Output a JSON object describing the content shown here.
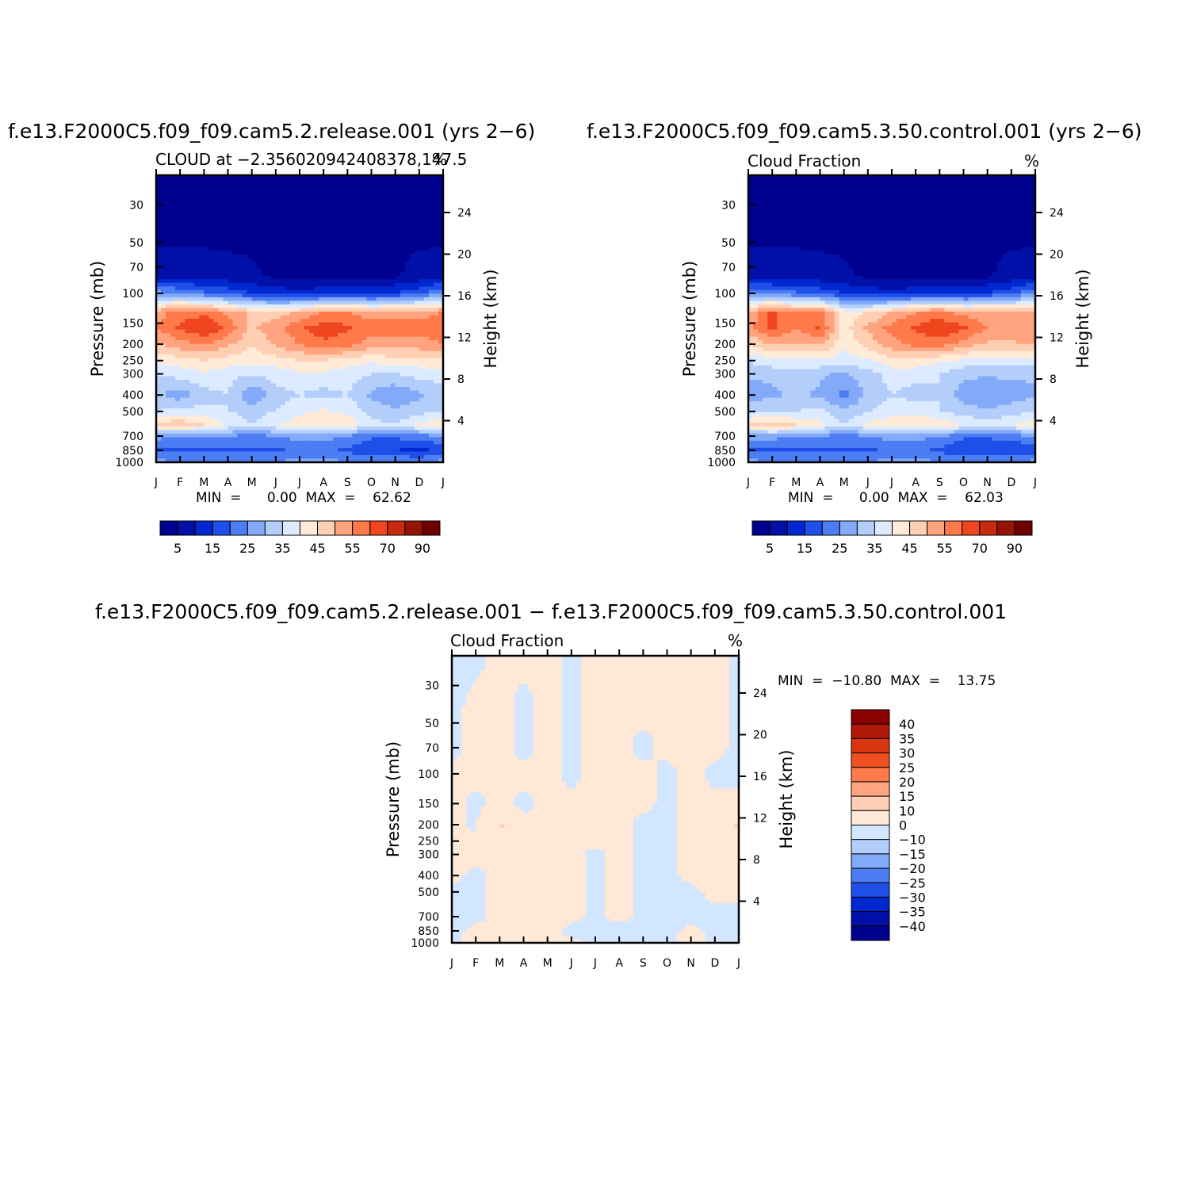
{
  "panels": [
    {
      "title": "f.e13.F2000C5.f09_f09.cam5.2.release.001  (yrs  2−6)",
      "left_label": "CLOUD  at  −2.356020942408378,147.5",
      "units": "%",
      "ylabel_left": "Pressure  (mb)",
      "ylabel_right": "Height  (km)",
      "minmax": "MIN  =      0.00  MAX  =    62.62"
    },
    {
      "title": "f.e13.F2000C5.f09_f09.cam5.3.50.control.001  (yrs  2−6)",
      "left_label": "Cloud  Fraction",
      "units": "%",
      "ylabel_left": "Pressure  (mb)",
      "ylabel_right": "Height  (km)",
      "minmax": "MIN  =      0.00  MAX  =    62.03"
    },
    {
      "title": "f.e13.F2000C5.f09_f09.cam5.2.release.001  −  f.e13.F2000C5.f09_f09.cam5.3.50.control.001",
      "left_label": "Cloud  Fraction",
      "units": "%",
      "ylabel_left": "Pressure  (mb)",
      "ylabel_right": "Height  (km)",
      "minmax": "MIN  =  −10.80  MAX  =    13.75"
    }
  ],
  "chart_data": [
    {
      "type": "heatmap",
      "title": "f.e13.F2000C5.f09_f09.cam5.2.release.001  (yrs  2−6)",
      "x_ticks": [
        "J",
        "F",
        "M",
        "A",
        "M",
        "J",
        "J",
        "A",
        "S",
        "O",
        "N",
        "D",
        "J"
      ],
      "y_ticks_pressure": [
        "30",
        "50",
        "70",
        "100",
        "150",
        "200",
        "250",
        "300",
        "400",
        "500",
        "700",
        "850",
        "1000"
      ],
      "y_ticks_height": [
        "24",
        "20",
        "16",
        "12",
        "8",
        "4"
      ],
      "ylim_mb": [
        20,
        1000
      ],
      "levels": [
        "5",
        "15",
        "25",
        "35",
        "45",
        "55",
        "70",
        "90"
      ],
      "min": 0.0,
      "max": 62.62,
      "x": [
        "J",
        "F",
        "M",
        "A",
        "M",
        "J",
        "J",
        "A",
        "S",
        "O",
        "N",
        "D",
        "J"
      ],
      "y_mb": [
        20,
        50,
        80,
        100,
        130,
        160,
        200,
        250,
        300,
        400,
        500,
        600,
        700,
        850,
        1000
      ],
      "z": [
        [
          0,
          0,
          0,
          0,
          0,
          0,
          0,
          0,
          0,
          0,
          0,
          0,
          0
        ],
        [
          0,
          0,
          0,
          0,
          0,
          0,
          0,
          0,
          0,
          0,
          0,
          0,
          0
        ],
        [
          4,
          3,
          3,
          2,
          1,
          0,
          0,
          0,
          0,
          0,
          0,
          2,
          4
        ],
        [
          22,
          20,
          16,
          14,
          10,
          8,
          6,
          8,
          9,
          8,
          10,
          14,
          20
        ],
        [
          48,
          52,
          54,
          48,
          44,
          42,
          46,
          50,
          50,
          48,
          48,
          48,
          50
        ],
        [
          50,
          56,
          60,
          54,
          44,
          48,
          54,
          58,
          56,
          52,
          52,
          52,
          54
        ],
        [
          44,
          48,
          50,
          46,
          40,
          46,
          50,
          54,
          52,
          48,
          48,
          48,
          50
        ],
        [
          36,
          38,
          40,
          38,
          38,
          38,
          40,
          40,
          38,
          36,
          38,
          38,
          38
        ],
        [
          30,
          32,
          34,
          32,
          30,
          32,
          34,
          34,
          32,
          30,
          30,
          32,
          32
        ],
        [
          26,
          22,
          28,
          30,
          20,
          28,
          30,
          28,
          30,
          24,
          20,
          24,
          28
        ],
        [
          30,
          32,
          32,
          30,
          28,
          30,
          34,
          36,
          34,
          28,
          26,
          28,
          30
        ],
        [
          42,
          44,
          40,
          34,
          30,
          34,
          38,
          40,
          38,
          32,
          30,
          36,
          40
        ],
        [
          22,
          20,
          20,
          20,
          18,
          20,
          22,
          22,
          20,
          16,
          16,
          18,
          20
        ],
        [
          14,
          14,
          14,
          14,
          14,
          14,
          16,
          16,
          14,
          10,
          10,
          8,
          12
        ],
        [
          22,
          20,
          20,
          20,
          20,
          20,
          22,
          22,
          20,
          20,
          20,
          20,
          22
        ]
      ]
    },
    {
      "type": "heatmap",
      "title": "f.e13.F2000C5.f09_f09.cam5.3.50.control.001  (yrs  2−6)",
      "x_ticks": [
        "J",
        "F",
        "M",
        "A",
        "M",
        "J",
        "J",
        "A",
        "S",
        "O",
        "N",
        "D",
        "J"
      ],
      "y_ticks_pressure": [
        "30",
        "50",
        "70",
        "100",
        "150",
        "200",
        "250",
        "300",
        "400",
        "500",
        "700",
        "850",
        "1000"
      ],
      "y_ticks_height": [
        "24",
        "20",
        "16",
        "12",
        "8",
        "4"
      ],
      "ylim_mb": [
        20,
        1000
      ],
      "levels": [
        "5",
        "15",
        "25",
        "35",
        "45",
        "55",
        "70",
        "90"
      ],
      "min": 0.0,
      "max": 62.03,
      "x": [
        "J",
        "F",
        "M",
        "A",
        "M",
        "J",
        "J",
        "A",
        "S",
        "O",
        "N",
        "D",
        "J"
      ],
      "y_mb": [
        20,
        50,
        80,
        100,
        130,
        160,
        200,
        250,
        300,
        400,
        500,
        600,
        700,
        850,
        1000
      ],
      "z": [
        [
          0,
          0,
          0,
          0,
          0,
          0,
          0,
          0,
          0,
          0,
          0,
          0,
          0
        ],
        [
          0,
          0,
          0,
          0,
          0,
          0,
          0,
          0,
          0,
          0,
          0,
          0,
          0
        ],
        [
          4,
          3,
          3,
          2,
          1,
          0,
          0,
          0,
          0,
          0,
          0,
          2,
          4
        ],
        [
          20,
          18,
          16,
          14,
          10,
          8,
          6,
          8,
          9,
          8,
          10,
          14,
          20
        ],
        [
          46,
          56,
          50,
          52,
          38,
          40,
          46,
          50,
          52,
          48,
          48,
          46,
          48
        ],
        [
          48,
          56,
          50,
          56,
          38,
          46,
          52,
          56,
          60,
          56,
          50,
          48,
          50
        ],
        [
          40,
          46,
          44,
          46,
          36,
          42,
          48,
          52,
          52,
          48,
          44,
          44,
          46
        ],
        [
          30,
          34,
          32,
          34,
          32,
          34,
          38,
          38,
          36,
          34,
          32,
          32,
          32
        ],
        [
          26,
          26,
          28,
          26,
          24,
          28,
          32,
          32,
          30,
          26,
          26,
          26,
          26
        ],
        [
          22,
          24,
          26,
          24,
          18,
          26,
          30,
          28,
          30,
          22,
          20,
          22,
          24
        ],
        [
          30,
          30,
          30,
          32,
          26,
          30,
          32,
          34,
          30,
          28,
          26,
          28,
          30
        ],
        [
          40,
          44,
          40,
          36,
          30,
          36,
          40,
          38,
          40,
          34,
          32,
          34,
          38
        ],
        [
          22,
          22,
          20,
          20,
          18,
          20,
          22,
          22,
          20,
          16,
          16,
          18,
          20
        ],
        [
          14,
          14,
          14,
          14,
          14,
          14,
          16,
          16,
          14,
          10,
          10,
          10,
          12
        ],
        [
          22,
          20,
          20,
          20,
          20,
          20,
          22,
          22,
          20,
          20,
          20,
          20,
          22
        ]
      ]
    },
    {
      "type": "heatmap",
      "title": "f.e13.F2000C5.f09_f09.cam5.2.release.001  −  f.e13.F2000C5.f09_f09.cam5.3.50.control.001",
      "x_ticks": [
        "J",
        "F",
        "M",
        "A",
        "M",
        "J",
        "J",
        "A",
        "S",
        "O",
        "N",
        "D",
        "J"
      ],
      "y_ticks_pressure": [
        "30",
        "50",
        "70",
        "100",
        "150",
        "200",
        "250",
        "300",
        "400",
        "500",
        "700",
        "850",
        "1000"
      ],
      "y_ticks_height": [
        "24",
        "20",
        "16",
        "12",
        "8",
        "4"
      ],
      "ylim_mb": [
        20,
        1000
      ],
      "levels": [
        "40",
        "35",
        "30",
        "25",
        "20",
        "15",
        "10",
        "0",
        "−10",
        "−15",
        "−20",
        "−25",
        "−30",
        "−35",
        "−40"
      ],
      "min": -10.8,
      "max": 13.75,
      "x": [
        "J",
        "F",
        "M",
        "A",
        "M",
        "J",
        "J",
        "A",
        "S",
        "O",
        "N",
        "D",
        "J"
      ],
      "y_mb": [
        20,
        40,
        70,
        100,
        150,
        200,
        250,
        300,
        400,
        500,
        700,
        850,
        1000
      ],
      "z": [
        [
          -1,
          -1,
          1,
          1,
          1,
          -1,
          1,
          1,
          1,
          1,
          1,
          1,
          -1
        ],
        [
          -1,
          1,
          1,
          -1,
          1,
          -1,
          1,
          1,
          1,
          1,
          1,
          1,
          -1
        ],
        [
          -1,
          1,
          1,
          -1,
          1,
          -1,
          1,
          1,
          -1,
          1,
          1,
          1,
          -1
        ],
        [
          1,
          1,
          1,
          1,
          1,
          -1,
          1,
          1,
          1,
          -1,
          1,
          -1,
          -1
        ],
        [
          1,
          -1,
          1,
          -1,
          1,
          1,
          1,
          1,
          1,
          -1,
          1,
          1,
          1
        ],
        [
          1,
          -1,
          12,
          1,
          1,
          1,
          1,
          1,
          -1,
          -1,
          1,
          1,
          12
        ],
        [
          1,
          1,
          1,
          1,
          1,
          1,
          1,
          1,
          -1,
          -1,
          1,
          1,
          1
        ],
        [
          1,
          1,
          1,
          1,
          1,
          1,
          -1,
          1,
          -1,
          -1,
          1,
          1,
          1
        ],
        [
          1,
          -1,
          1,
          1,
          1,
          1,
          -1,
          1,
          -1,
          -1,
          1,
          1,
          1
        ],
        [
          -1,
          -1,
          1,
          1,
          1,
          1,
          -1,
          1,
          -1,
          -1,
          -1,
          1,
          1
        ],
        [
          -1,
          -1,
          1,
          1,
          1,
          1,
          -1,
          1,
          -1,
          -1,
          -1,
          -1,
          -1
        ],
        [
          -1,
          1,
          1,
          1,
          1,
          -1,
          -1,
          -1,
          -1,
          -1,
          1,
          -1,
          -1
        ],
        [
          -1,
          1,
          1,
          1,
          1,
          1,
          -1,
          -1,
          -1,
          -1,
          1,
          -1,
          -1
        ]
      ]
    }
  ],
  "colors": {
    "levels14": [
      "#00008f",
      "#0010a8",
      "#0028d0",
      "#1f4fe8",
      "#4d7df2",
      "#82aaf8",
      "#b4cefc",
      "#dcebff",
      "#ffebd8",
      "#ffcfb4",
      "#ffa47e",
      "#ff7a4a",
      "#f0461e",
      "#c82a10",
      "#961406",
      "#6e0000"
    ],
    "diff16": [
      "#00008f",
      "#0010a8",
      "#0028d0",
      "#1f4fe8",
      "#4d7df2",
      "#82aaf8",
      "#b4cefc",
      "#d2e6ff",
      "#ffe8d6",
      "#ffcfb4",
      "#ffa47e",
      "#ff7a4a",
      "#f04f20",
      "#d83510",
      "#b01808",
      "#8b0000"
    ]
  }
}
